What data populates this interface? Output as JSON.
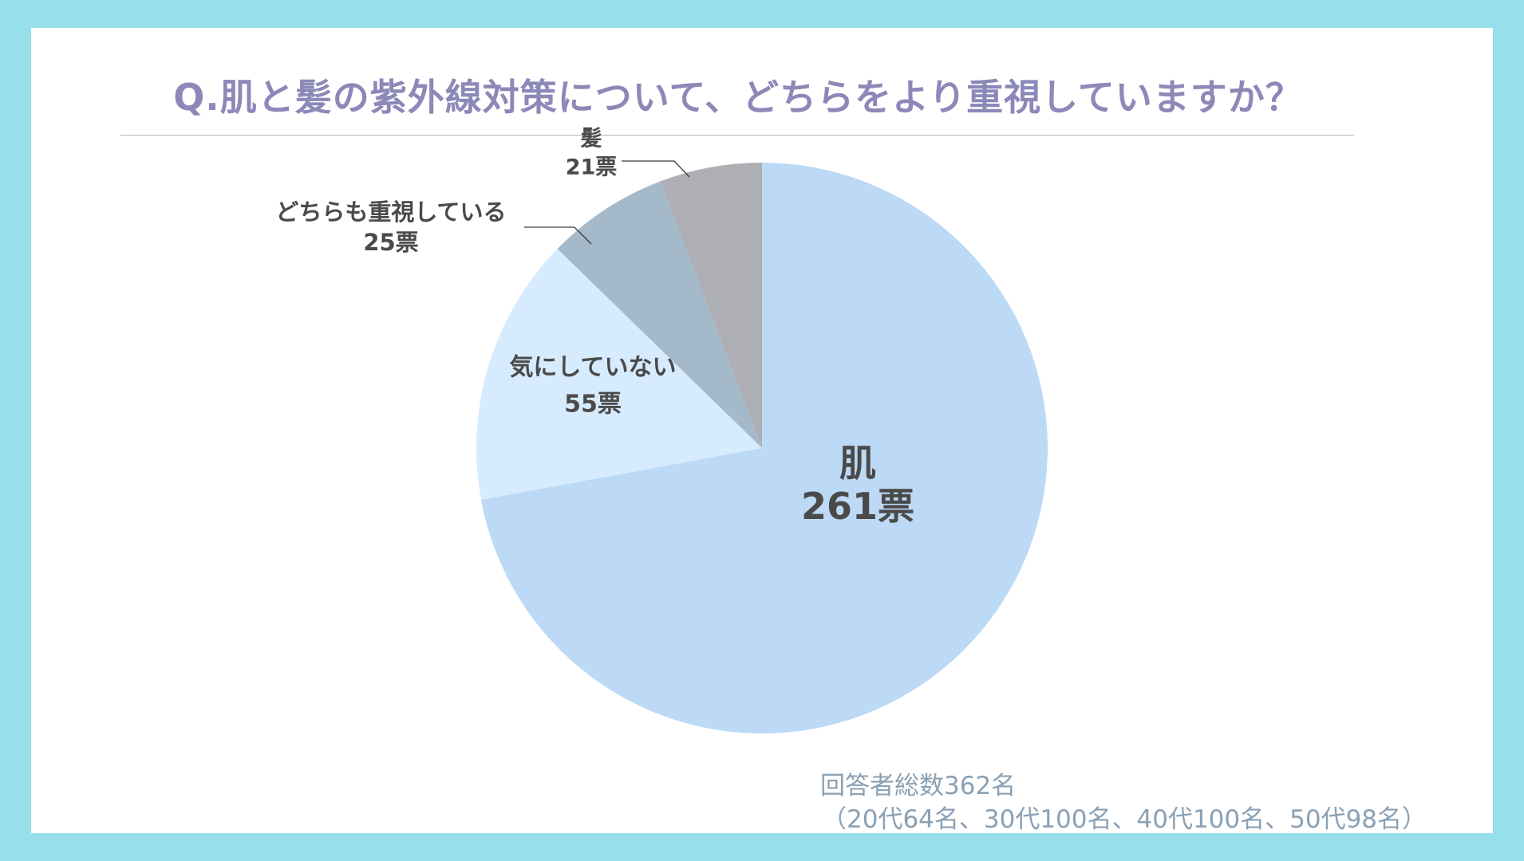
{
  "title": "Q.肌と髪の紫外線対策について、どちらをより重視していますか？",
  "footnote": {
    "total": "回答者総数362名",
    "breakdown": "（20代64名、30代100名、40代100名、50代98名）"
  },
  "chart_data": {
    "type": "pie",
    "start": "12 o'clock",
    "direction": "clockwise",
    "slices": [
      {
        "name": "肌",
        "value": 261,
        "label": "261票",
        "color": "#bcd9f6"
      },
      {
        "name": "気にしていない",
        "value": 55,
        "label": "55票",
        "color": "#d6ebfd"
      },
      {
        "name": "どちらも重視している",
        "value": 25,
        "label": "25票",
        "color": "#a4b9c9"
      },
      {
        "name": "髪",
        "value": 21,
        "label": "21票",
        "color": "#adafb4"
      }
    ]
  }
}
